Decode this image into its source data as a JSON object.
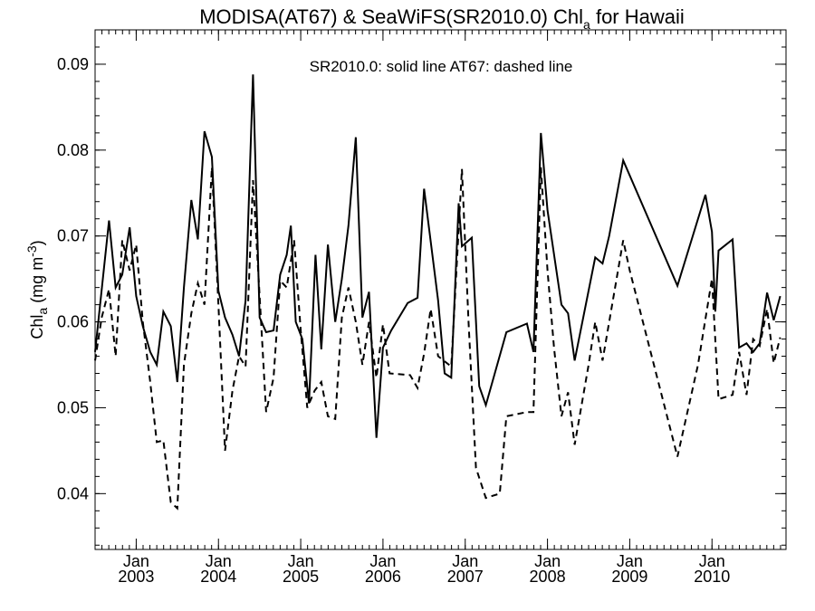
{
  "chart_data": {
    "type": "line",
    "title": {
      "prefix": "MODISA(AT67) & SeaWiFS(SR2010.0)  Chl",
      "subscript": "a",
      "suffix": " for Hawaii"
    },
    "ylabel": {
      "prefix": "Chl",
      "subscript": "a",
      "mid": " (mg m",
      "superscript": "-3",
      "suffix": ")"
    },
    "annotation": "SR2010.0: solid line   AT67: dashed line",
    "x_unit": "decimal year",
    "xlim": [
      2002.5,
      2010.9
    ],
    "ylim": [
      0.0335,
      0.094
    ],
    "x_ticks": [
      {
        "value": 2003.0,
        "month": "Jan",
        "year": "2003"
      },
      {
        "value": 2004.0,
        "month": "Jan",
        "year": "2004"
      },
      {
        "value": 2005.0,
        "month": "Jan",
        "year": "2005"
      },
      {
        "value": 2006.0,
        "month": "Jan",
        "year": "2006"
      },
      {
        "value": 2007.0,
        "month": "Jan",
        "year": "2007"
      },
      {
        "value": 2008.0,
        "month": "Jan",
        "year": "2008"
      },
      {
        "value": 2009.0,
        "month": "Jan",
        "year": "2009"
      },
      {
        "value": 2010.0,
        "month": "Jan",
        "year": "2010"
      }
    ],
    "y_ticks": [
      {
        "value": 0.04,
        "label": "0.04"
      },
      {
        "value": 0.05,
        "label": "0.05"
      },
      {
        "value": 0.06,
        "label": "0.06"
      },
      {
        "value": 0.07,
        "label": "0.07"
      },
      {
        "value": 0.08,
        "label": "0.08"
      },
      {
        "value": 0.09,
        "label": "0.09"
      }
    ],
    "grid": false,
    "series": [
      {
        "name": "SR2010.0",
        "style": "solid",
        "color": "#000000",
        "points": [
          [
            2002.5,
            0.0565
          ],
          [
            2002.67,
            0.0718
          ],
          [
            2002.75,
            0.064
          ],
          [
            2002.83,
            0.0655
          ],
          [
            2002.92,
            0.071
          ],
          [
            2003.0,
            0.063
          ],
          [
            2003.08,
            0.0595
          ],
          [
            2003.17,
            0.0565
          ],
          [
            2003.25,
            0.055
          ],
          [
            2003.33,
            0.0612
          ],
          [
            2003.42,
            0.0595
          ],
          [
            2003.5,
            0.053
          ],
          [
            2003.58,
            0.064
          ],
          [
            2003.67,
            0.0742
          ],
          [
            2003.75,
            0.0696
          ],
          [
            2003.83,
            0.0822
          ],
          [
            2003.92,
            0.0792
          ],
          [
            2004.0,
            0.0636
          ],
          [
            2004.08,
            0.0605
          ],
          [
            2004.17,
            0.0585
          ],
          [
            2004.25,
            0.056
          ],
          [
            2004.33,
            0.0625
          ],
          [
            2004.42,
            0.0888
          ],
          [
            2004.5,
            0.0605
          ],
          [
            2004.58,
            0.0588
          ],
          [
            2004.67,
            0.059
          ],
          [
            2004.75,
            0.0655
          ],
          [
            2004.83,
            0.0678
          ],
          [
            2004.88,
            0.0712
          ],
          [
            2004.94,
            0.06
          ],
          [
            2005.02,
            0.058
          ],
          [
            2005.1,
            0.0505
          ],
          [
            2005.18,
            0.0678
          ],
          [
            2005.25,
            0.0568
          ],
          [
            2005.33,
            0.069
          ],
          [
            2005.42,
            0.06
          ],
          [
            2005.5,
            0.065
          ],
          [
            2005.58,
            0.0712
          ],
          [
            2005.67,
            0.0815
          ],
          [
            2005.75,
            0.0605
          ],
          [
            2005.83,
            0.0635
          ],
          [
            2005.92,
            0.0465
          ],
          [
            2006.0,
            0.057
          ],
          [
            2006.1,
            0.059
          ],
          [
            2006.3,
            0.0622
          ],
          [
            2006.42,
            0.0628
          ],
          [
            2006.5,
            0.0755
          ],
          [
            2006.67,
            0.0625
          ],
          [
            2006.75,
            0.054
          ],
          [
            2006.83,
            0.0535
          ],
          [
            2006.92,
            0.0738
          ],
          [
            2006.96,
            0.0688
          ],
          [
            2007.08,
            0.0698
          ],
          [
            2007.17,
            0.0525
          ],
          [
            2007.25,
            0.0503
          ],
          [
            2007.5,
            0.0588
          ],
          [
            2007.75,
            0.0598
          ],
          [
            2007.83,
            0.0565
          ],
          [
            2007.92,
            0.082
          ],
          [
            2008.0,
            0.073
          ],
          [
            2008.17,
            0.062
          ],
          [
            2008.25,
            0.061
          ],
          [
            2008.33,
            0.0555
          ],
          [
            2008.58,
            0.0675
          ],
          [
            2008.67,
            0.0668
          ],
          [
            2008.75,
            0.07
          ],
          [
            2008.92,
            0.0788
          ],
          [
            2009.58,
            0.0642
          ],
          [
            2009.92,
            0.0748
          ],
          [
            2010.0,
            0.0705
          ],
          [
            2010.04,
            0.0612
          ],
          [
            2010.08,
            0.0683
          ],
          [
            2010.25,
            0.0696
          ],
          [
            2010.33,
            0.057
          ],
          [
            2010.42,
            0.0575
          ],
          [
            2010.5,
            0.0565
          ],
          [
            2010.58,
            0.0575
          ],
          [
            2010.67,
            0.0634
          ],
          [
            2010.75,
            0.0602
          ],
          [
            2010.83,
            0.063
          ]
        ]
      },
      {
        "name": "AT67",
        "style": "dashed",
        "color": "#000000",
        "points": [
          [
            2002.5,
            0.0555
          ],
          [
            2002.58,
            0.0605
          ],
          [
            2002.67,
            0.0638
          ],
          [
            2002.75,
            0.056
          ],
          [
            2002.83,
            0.0695
          ],
          [
            2002.92,
            0.066
          ],
          [
            2003.0,
            0.069
          ],
          [
            2003.08,
            0.06
          ],
          [
            2003.17,
            0.053
          ],
          [
            2003.25,
            0.046
          ],
          [
            2003.33,
            0.0462
          ],
          [
            2003.42,
            0.039
          ],
          [
            2003.5,
            0.0383
          ],
          [
            2003.58,
            0.055
          ],
          [
            2003.67,
            0.061
          ],
          [
            2003.75,
            0.0645
          ],
          [
            2003.83,
            0.062
          ],
          [
            2003.92,
            0.078
          ],
          [
            2004.0,
            0.062
          ],
          [
            2004.08,
            0.045
          ],
          [
            2004.17,
            0.052
          ],
          [
            2004.25,
            0.056
          ],
          [
            2004.33,
            0.0548
          ],
          [
            2004.42,
            0.0765
          ],
          [
            2004.5,
            0.063
          ],
          [
            2004.58,
            0.0495
          ],
          [
            2004.67,
            0.0535
          ],
          [
            2004.75,
            0.0648
          ],
          [
            2004.83,
            0.064
          ],
          [
            2004.92,
            0.0695
          ],
          [
            2005.0,
            0.059
          ],
          [
            2005.08,
            0.05
          ],
          [
            2005.17,
            0.052
          ],
          [
            2005.25,
            0.053
          ],
          [
            2005.33,
            0.049
          ],
          [
            2005.42,
            0.0487
          ],
          [
            2005.5,
            0.0605
          ],
          [
            2005.58,
            0.064
          ],
          [
            2005.67,
            0.06
          ],
          [
            2005.75,
            0.055
          ],
          [
            2005.83,
            0.06
          ],
          [
            2005.92,
            0.0535
          ],
          [
            2006.0,
            0.0597
          ],
          [
            2006.08,
            0.054
          ],
          [
            2006.33,
            0.0538
          ],
          [
            2006.42,
            0.0523
          ],
          [
            2006.5,
            0.0563
          ],
          [
            2006.58,
            0.0615
          ],
          [
            2006.67,
            0.056
          ],
          [
            2006.83,
            0.0548
          ],
          [
            2006.96,
            0.0778
          ],
          [
            2007.04,
            0.06
          ],
          [
            2007.13,
            0.043
          ],
          [
            2007.25,
            0.0395
          ],
          [
            2007.42,
            0.04
          ],
          [
            2007.5,
            0.049
          ],
          [
            2007.75,
            0.0495
          ],
          [
            2007.83,
            0.0495
          ],
          [
            2007.92,
            0.078
          ],
          [
            2008.0,
            0.066
          ],
          [
            2008.08,
            0.057
          ],
          [
            2008.17,
            0.049
          ],
          [
            2008.25,
            0.0518
          ],
          [
            2008.33,
            0.0457
          ],
          [
            2008.5,
            0.055
          ],
          [
            2008.58,
            0.06
          ],
          [
            2008.67,
            0.0555
          ],
          [
            2008.92,
            0.0695
          ],
          [
            2009.0,
            0.066
          ],
          [
            2009.58,
            0.0443
          ],
          [
            2009.83,
            0.055
          ],
          [
            2010.0,
            0.065
          ],
          [
            2010.08,
            0.051
          ],
          [
            2010.25,
            0.0515
          ],
          [
            2010.33,
            0.0565
          ],
          [
            2010.42,
            0.0515
          ],
          [
            2010.5,
            0.058
          ],
          [
            2010.58,
            0.0572
          ],
          [
            2010.67,
            0.0615
          ],
          [
            2010.75,
            0.0552
          ],
          [
            2010.83,
            0.0582
          ]
        ]
      }
    ]
  }
}
